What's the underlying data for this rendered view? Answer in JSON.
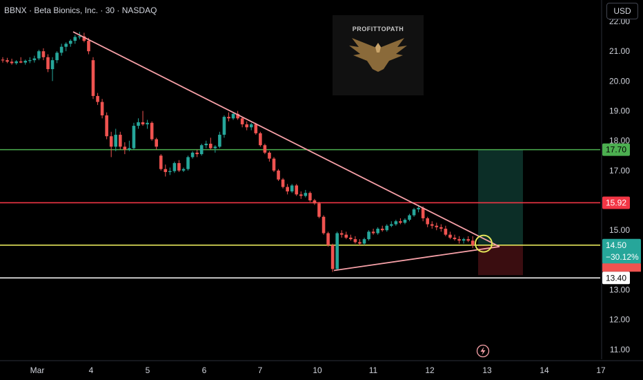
{
  "header": {
    "title": "BBNX · Beta Bionics, Inc. · 30 · NASDAQ",
    "currency_button": "USD"
  },
  "watermark": {
    "text": "PROFITTOPATH"
  },
  "colors": {
    "up": "#26a69a",
    "down": "#ef5350",
    "trendline": "#f7a1a8",
    "line_target": "#4caf50",
    "line_resistance": "#f23645",
    "line_current": "#e5e65a",
    "line_support": "#ffffff",
    "profit_zone": "#0c2e27",
    "loss_zone": "#3a0d10"
  },
  "chart_data": {
    "type": "candlestick",
    "y_axis": {
      "range": [
        10.6,
        22.2
      ],
      "ticks": [
        "11.00",
        "12.00",
        "13.00",
        "14.00",
        "15.00",
        "16.00",
        "17.00",
        "18.00",
        "19.00",
        "20.00",
        "21.00",
        "22.00"
      ]
    },
    "x_axis": {
      "ticks": [
        "Mar",
        "4",
        "5",
        "6",
        "7",
        "10",
        "11",
        "12",
        "13",
        "14",
        "17"
      ]
    },
    "price_lines": [
      {
        "name": "target",
        "value": 17.7,
        "label": "17.70"
      },
      {
        "name": "resistance",
        "value": 15.92,
        "label": "15.92"
      },
      {
        "name": "current",
        "value": 14.5,
        "label": "14.50",
        "change": "−30.12%"
      },
      {
        "name": "support",
        "value": 13.4,
        "label": "13.40"
      }
    ],
    "trendlines": [
      {
        "from": {
          "x": "Mar 3 end",
          "y": 21.65
        },
        "to": {
          "x": "Mar 13",
          "y": 14.45
        }
      },
      {
        "from": {
          "x": "Mar 10",
          "y": 13.65
        },
        "to": {
          "x": "Mar 13",
          "y": 14.45
        }
      }
    ],
    "position": {
      "entry": 14.5,
      "target": 17.7,
      "stop": 13.4
    },
    "candles": [
      [
        20.72,
        20.8,
        20.62,
        20.7
      ],
      [
        20.7,
        20.78,
        20.6,
        20.65
      ],
      [
        20.65,
        20.75,
        20.55,
        20.6
      ],
      [
        20.6,
        20.7,
        20.55,
        20.66
      ],
      [
        20.66,
        20.8,
        20.6,
        20.62
      ],
      [
        20.62,
        20.72,
        20.55,
        20.68
      ],
      [
        20.68,
        20.8,
        20.6,
        20.7
      ],
      [
        20.7,
        20.85,
        20.62,
        20.76
      ],
      [
        20.76,
        21.05,
        20.7,
        21.0
      ],
      [
        21.0,
        21.1,
        20.7,
        20.8
      ],
      [
        20.8,
        20.9,
        20.3,
        20.4
      ],
      [
        20.4,
        20.8,
        20.0,
        20.7
      ],
      [
        20.7,
        21.0,
        20.6,
        20.95
      ],
      [
        20.95,
        21.25,
        20.85,
        21.15
      ],
      [
        21.15,
        21.3,
        21.0,
        21.25
      ],
      [
        21.25,
        21.4,
        21.15,
        21.35
      ],
      [
        21.35,
        21.55,
        21.25,
        21.48
      ],
      [
        21.48,
        21.65,
        21.4,
        21.5
      ],
      [
        21.5,
        21.62,
        21.3,
        21.35
      ],
      [
        21.35,
        21.45,
        20.9,
        21.0
      ],
      [
        20.7,
        20.8,
        19.4,
        19.5
      ],
      [
        19.5,
        19.6,
        19.2,
        19.3
      ],
      [
        19.3,
        19.4,
        18.75,
        18.85
      ],
      [
        18.85,
        18.95,
        18.05,
        18.15
      ],
      [
        18.15,
        18.3,
        17.45,
        17.8
      ],
      [
        17.8,
        18.4,
        17.65,
        18.2
      ],
      [
        18.2,
        18.3,
        17.7,
        17.8
      ],
      [
        17.8,
        17.95,
        17.55,
        17.7
      ],
      [
        17.7,
        18.0,
        17.65,
        17.75
      ],
      [
        17.75,
        18.6,
        17.7,
        18.5
      ],
      [
        18.5,
        18.75,
        18.4,
        18.62
      ],
      [
        18.62,
        19.0,
        18.5,
        18.55
      ],
      [
        18.55,
        18.7,
        18.4,
        18.6
      ],
      [
        18.6,
        18.65,
        18.0,
        18.05
      ],
      [
        18.05,
        18.1,
        17.7,
        17.8
      ],
      [
        17.5,
        17.55,
        17.0,
        17.05
      ],
      [
        17.05,
        17.2,
        16.8,
        16.95
      ],
      [
        16.95,
        17.1,
        16.85,
        16.98
      ],
      [
        16.98,
        17.3,
        16.92,
        17.25
      ],
      [
        17.25,
        17.35,
        16.95,
        17.0
      ],
      [
        17.0,
        17.1,
        16.95,
        17.05
      ],
      [
        17.05,
        17.5,
        17.0,
        17.45
      ],
      [
        17.45,
        17.65,
        17.4,
        17.6
      ],
      [
        17.6,
        17.7,
        17.45,
        17.55
      ],
      [
        17.55,
        17.9,
        17.5,
        17.85
      ],
      [
        17.85,
        18.0,
        17.75,
        17.9
      ],
      [
        17.9,
        18.1,
        17.7,
        17.75
      ],
      [
        17.75,
        17.85,
        17.6,
        17.8
      ],
      [
        17.8,
        18.3,
        17.75,
        18.2
      ],
      [
        18.2,
        18.85,
        18.1,
        18.8
      ],
      [
        18.8,
        18.95,
        18.65,
        18.75
      ],
      [
        18.75,
        18.95,
        18.7,
        18.9
      ],
      [
        18.9,
        19.0,
        18.7,
        18.75
      ],
      [
        18.75,
        18.8,
        18.45,
        18.55
      ],
      [
        18.55,
        18.65,
        18.35,
        18.45
      ],
      [
        18.45,
        18.6,
        18.35,
        18.55
      ],
      [
        18.55,
        18.6,
        18.2,
        18.25
      ],
      [
        18.25,
        18.3,
        17.8,
        17.85
      ],
      [
        17.85,
        17.9,
        17.55,
        17.6
      ],
      [
        17.6,
        17.65,
        17.3,
        17.4
      ],
      [
        17.4,
        17.45,
        16.95,
        17.0
      ],
      [
        17.0,
        17.05,
        16.65,
        16.7
      ],
      [
        16.7,
        16.75,
        16.4,
        16.45
      ],
      [
        16.45,
        16.55,
        16.2,
        16.3
      ],
      [
        16.3,
        16.55,
        16.25,
        16.5
      ],
      [
        16.5,
        16.55,
        16.15,
        16.2
      ],
      [
        16.2,
        16.3,
        16.05,
        16.15
      ],
      [
        16.15,
        16.35,
        16.1,
        16.25
      ],
      [
        16.25,
        16.3,
        15.95,
        16.0
      ],
      [
        16.0,
        16.05,
        15.85,
        15.9
      ],
      [
        15.9,
        15.95,
        15.4,
        15.45
      ],
      [
        15.45,
        15.5,
        14.85,
        14.9
      ],
      [
        14.9,
        14.95,
        14.45,
        14.5
      ],
      [
        14.5,
        14.55,
        13.6,
        13.7
      ],
      [
        13.7,
        14.95,
        13.65,
        14.9
      ],
      [
        14.9,
        15.0,
        14.75,
        14.85
      ],
      [
        14.85,
        14.95,
        14.7,
        14.75
      ],
      [
        14.75,
        14.85,
        14.65,
        14.7
      ],
      [
        14.7,
        14.8,
        14.55,
        14.6
      ],
      [
        14.6,
        14.7,
        14.5,
        14.55
      ],
      [
        14.55,
        14.75,
        14.5,
        14.7
      ],
      [
        14.7,
        15.0,
        14.65,
        14.95
      ],
      [
        14.95,
        15.05,
        14.85,
        14.9
      ],
      [
        14.9,
        15.1,
        14.85,
        15.05
      ],
      [
        15.05,
        15.15,
        14.95,
        15.0
      ],
      [
        15.0,
        15.2,
        14.95,
        15.15
      ],
      [
        15.15,
        15.3,
        15.1,
        15.2
      ],
      [
        15.2,
        15.35,
        15.15,
        15.3
      ],
      [
        15.3,
        15.4,
        15.2,
        15.25
      ],
      [
        15.25,
        15.4,
        15.2,
        15.35
      ],
      [
        15.35,
        15.55,
        15.3,
        15.5
      ],
      [
        15.5,
        15.75,
        15.45,
        15.7
      ],
      [
        15.7,
        15.85,
        15.6,
        15.75
      ],
      [
        15.75,
        15.8,
        15.3,
        15.4
      ],
      [
        15.4,
        15.45,
        15.1,
        15.2
      ],
      [
        15.2,
        15.3,
        15.05,
        15.15
      ],
      [
        15.15,
        15.25,
        15.0,
        15.1
      ],
      [
        15.1,
        15.2,
        14.95,
        15.05
      ],
      [
        15.05,
        15.15,
        14.8,
        14.85
      ],
      [
        14.85,
        14.95,
        14.7,
        14.75
      ],
      [
        14.75,
        14.85,
        14.65,
        14.7
      ],
      [
        14.7,
        14.8,
        14.55,
        14.65
      ],
      [
        14.65,
        14.75,
        14.55,
        14.7
      ],
      [
        14.7,
        14.8,
        14.6,
        14.65
      ],
      [
        14.65,
        14.8,
        14.4,
        14.5
      ]
    ]
  }
}
